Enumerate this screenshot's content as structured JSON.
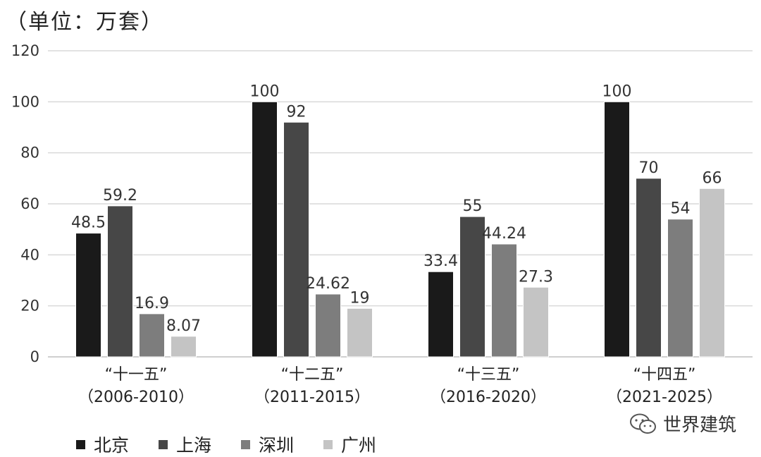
{
  "unit_label": "（单位：万套）",
  "watermark": {
    "text": "世界建筑",
    "icon": "wechat-icon"
  },
  "chart_data": {
    "type": "bar",
    "categories": [
      "“十一五”\n（2006-2010）",
      "“十二五”\n（2011-2015）",
      "“十三五”\n（2016-2020）",
      "“十四五”\n（2021-2025）"
    ],
    "series": [
      {
        "name": "北京",
        "color": "#1a1a1a",
        "values": [
          48.5,
          100,
          33.4,
          100
        ],
        "labels": [
          "48.5",
          "100",
          "33.4",
          "100"
        ]
      },
      {
        "name": "上海",
        "color": "#474747",
        "values": [
          59.2,
          92,
          55,
          70
        ],
        "labels": [
          "59.2",
          "92",
          "55",
          "70"
        ]
      },
      {
        "name": "深圳",
        "color": "#7d7d7d",
        "values": [
          16.9,
          24.62,
          44.24,
          54
        ],
        "labels": [
          "16.9",
          "24.62",
          "44.24",
          "54"
        ]
      },
      {
        "name": "广州",
        "color": "#c4c4c4",
        "values": [
          8.07,
          19,
          27.3,
          66
        ],
        "labels": [
          "8.07",
          "19",
          "27.3",
          "66"
        ]
      }
    ],
    "yticks": [
      "0",
      "20",
      "40",
      "60",
      "80",
      "100",
      "120"
    ],
    "ylim": [
      0,
      120
    ],
    "grid": true,
    "legend_position": "bottom-left"
  }
}
